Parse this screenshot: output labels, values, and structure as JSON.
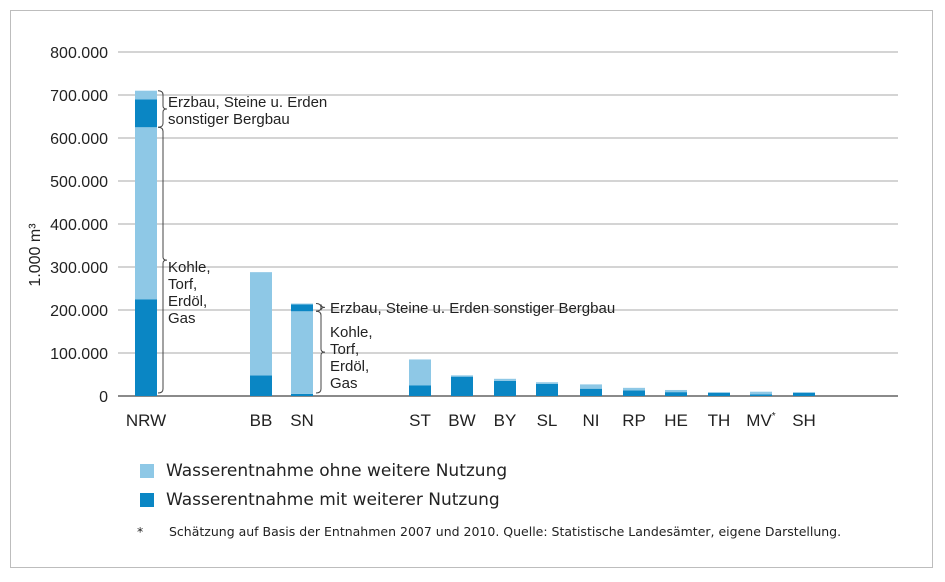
{
  "chart_data": {
    "type": "bar",
    "stacked": true,
    "ylabel": "1.000 m³",
    "ylim": [
      0,
      800000
    ],
    "yticks": [
      "0",
      "100.000",
      "200.000",
      "300.000",
      "400.000",
      "500.000",
      "600.000",
      "700.000",
      "800.000"
    ],
    "grid": true,
    "categories": [
      "NRW",
      "BB",
      "SN",
      "ST",
      "BW",
      "BY",
      "SL",
      "NI",
      "RP",
      "HE",
      "TH",
      "MV*",
      "SH"
    ],
    "category_groups": [
      [
        0
      ],
      [
        1,
        2
      ],
      [
        3,
        4,
        5,
        6,
        7,
        8,
        9,
        10,
        11,
        12
      ]
    ],
    "series": [
      {
        "name": "Wasserentnahme mit weiterer Nutzung",
        "color": "#0a86c4",
        "values": [
          225000,
          48000,
          5000,
          25000,
          45000,
          35000,
          28000,
          17000,
          13000,
          9000,
          7000,
          4000,
          7000
        ]
      },
      {
        "name": "Wasserentnahme ohne weitere Nutzung",
        "color": "#8ec8e6",
        "values": [
          400000,
          240000,
          192000,
          60000,
          3000,
          5000,
          4000,
          10000,
          6000,
          5000,
          2000,
          6000,
          2000
        ]
      },
      {
        "name": "Wasserentnahme mit weiterer Nutzung",
        "color": "#0a86c4",
        "values": [
          65000,
          0,
          16000,
          0,
          0,
          0,
          0,
          0,
          0,
          0,
          0,
          0,
          0
        ]
      },
      {
        "name": "Wasserentnahme ohne weitere Nutzung",
        "color": "#8ec8e6",
        "values": [
          20000,
          0,
          2000,
          0,
          0,
          0,
          0,
          0,
          0,
          0,
          0,
          0,
          0
        ]
      }
    ],
    "annotations": {
      "nrw_erzbau": [
        "Erzbau, Steine u. Erden",
        "sonstiger Bergbau"
      ],
      "nrw_kohle": [
        "Kohle,",
        "Torf,",
        "Erdöl,",
        "Gas"
      ],
      "sn_erzbau": [
        "Erzbau, Steine u. Erden sonstiger Bergbau"
      ],
      "sn_kohle": [
        "Kohle,",
        "Torf,",
        "Erdöl,",
        "Gas"
      ]
    },
    "legend": [
      {
        "label": "Wasserentnahme ohne weitere Nutzung",
        "color": "#8ec8e6"
      },
      {
        "label": "Wasserentnahme mit weiterer Nutzung",
        "color": "#0a86c4"
      }
    ],
    "footnote": {
      "mark": "*",
      "text": "Schätzung auf Basis der Entnahmen 2007 und 2010. Quelle: Statistische Landesämter, eigene Darstellung."
    }
  }
}
